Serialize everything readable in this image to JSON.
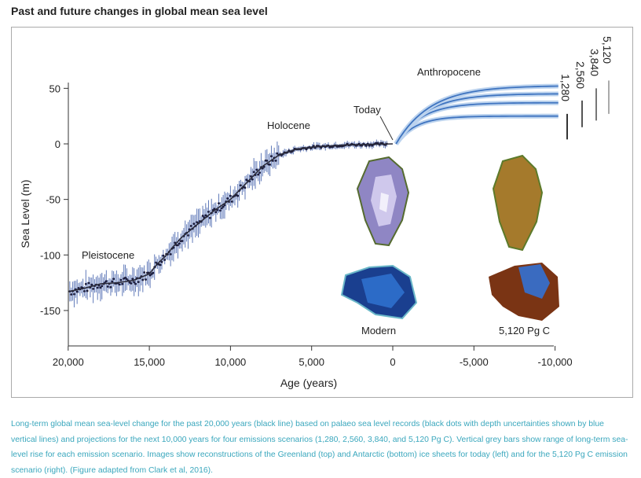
{
  "title": "Past and future changes in global mean sea level",
  "chart_data": {
    "type": "line",
    "xlabel": "Age (years)",
    "ylabel": "Sea Level (m)",
    "xlim": [
      20000,
      -10000
    ],
    "ylim": [
      -180,
      70
    ],
    "xticks": [
      20000,
      15000,
      10000,
      5000,
      0,
      -5000,
      -10000
    ],
    "xtick_labels": [
      "20,000",
      "15,000",
      "10,000",
      "5,000",
      "0",
      "-5,000",
      "-10,000"
    ],
    "yticks": [
      50,
      0,
      -50,
      -100,
      -150
    ],
    "ytick_labels": [
      "50",
      "0",
      "-50",
      "-100",
      "-150"
    ],
    "past": {
      "name": "Global mean sea level (black line)",
      "x": [
        20000,
        19000,
        18000,
        17000,
        16000,
        15000,
        14500,
        14000,
        13500,
        13000,
        12000,
        11000,
        10000,
        9000,
        8000,
        7000,
        6000,
        5000,
        3000,
        0
      ],
      "y": [
        -133,
        -130,
        -126,
        -125,
        -123,
        -117,
        -108,
        -101,
        -92,
        -84,
        -72,
        -60,
        -50,
        -35,
        -20,
        -10,
        -5,
        -3,
        -1,
        0
      ]
    },
    "scenarios": [
      {
        "name": "1,280",
        "end": 25,
        "range": [
          4,
          27
        ]
      },
      {
        "name": "2,560",
        "end": 37,
        "range": [
          15,
          39
        ]
      },
      {
        "name": "3,840",
        "end": 45,
        "range": [
          21,
          50
        ]
      },
      {
        "name": "5,120",
        "end": 52,
        "range": [
          27,
          57
        ]
      }
    ],
    "annotations": {
      "pleistocene": "Pleistocene",
      "holocene": "Holocene",
      "today": "Today",
      "anthropocene": "Anthropocene",
      "modern": "Modern",
      "future": "5,120 Pg C"
    }
  },
  "caption": "Long-term global mean sea-level change for the past 20,000 years (black line) based on palaeo sea level records (black dots with depth uncertainties shown by blue vertical lines) and projections for the next 10,000 years for four emissions scenarios (1,280, 2,560, 3,840, and 5,120 Pg C). Vertical grey bars show range of long-term sea-level rise for each emission scenario. Images show reconstructions of the Greenland (top) and Antarctic (bottom) ice sheets for today (left) and for the 5,120 Pg C emission scenario (right). (Figure adapted from Clark et al, 2016).",
  "colors": {
    "line": "#2b2b3a",
    "proxy": "#3a5aa8",
    "proj": "#3f74c0",
    "caption": "#3aa7bd"
  }
}
